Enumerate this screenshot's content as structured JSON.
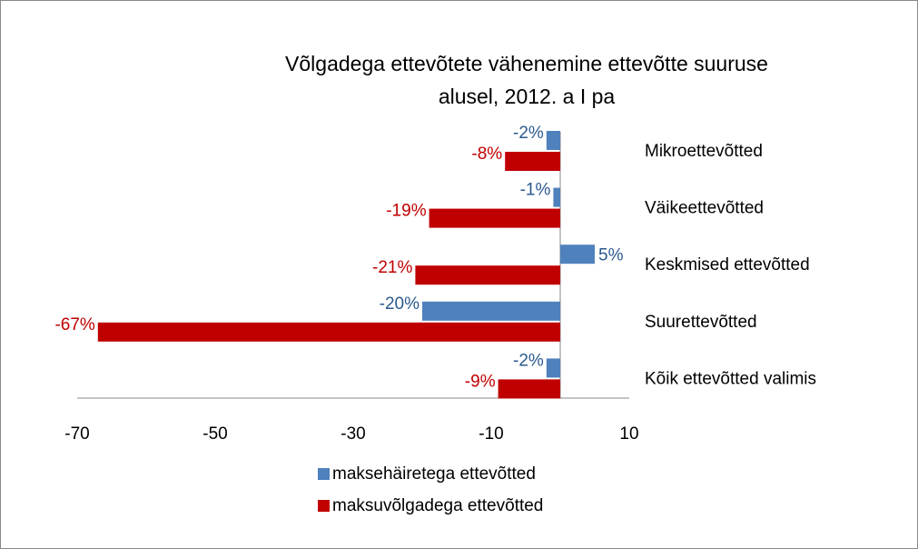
{
  "chart_data": {
    "type": "hbar",
    "title": "Võlgadega ettevõtete vähenemine ettevõtte suuruse alusel, 2012. a I pa",
    "categories": [
      "Mikroettevõtted",
      "Väikeettevõtted",
      "Keskmised ettevõtted",
      "Suurettevõtted",
      "Kõik ettevõtted valimis"
    ],
    "series": [
      {
        "name": "maksehäiretega ettevõtted",
        "color": "#4f81bd",
        "label_color": "#2b5a8e",
        "values": [
          -2,
          -1,
          5,
          -20,
          -2
        ],
        "value_labels": [
          "-2%",
          "-1%",
          "5%",
          "-20%",
          "-2%"
        ]
      },
      {
        "name": "maksuvõlgadega ettevõtted",
        "color": "#c00000",
        "label_color": "#c00000",
        "values": [
          -8,
          -19,
          -21,
          -67,
          -9
        ],
        "value_labels": [
          "-8%",
          "-19%",
          "-21%",
          "-67%",
          "-9%"
        ]
      }
    ],
    "xlim": [
      -70,
      10
    ],
    "xticks": [
      -70,
      -50,
      -30,
      -10,
      10
    ]
  }
}
